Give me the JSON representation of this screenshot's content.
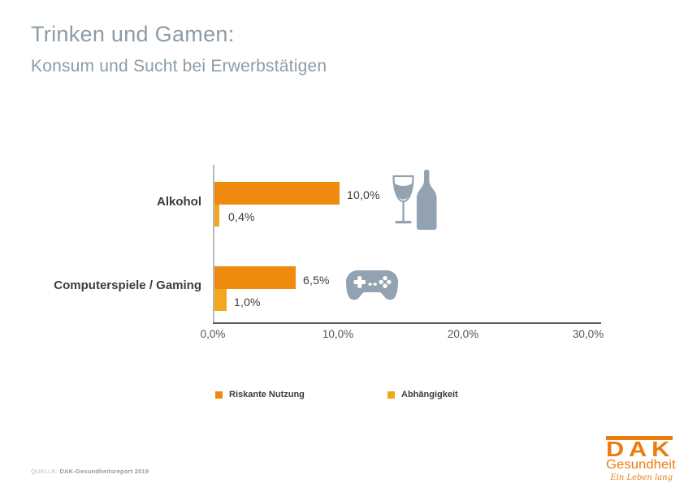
{
  "header": {
    "title": "Trinken und Gamen:",
    "subtitle": "Konsum und Sucht bei Erwerbstätigen"
  },
  "chart_data": {
    "type": "bar",
    "orientation": "horizontal",
    "title": "Trinken und Gamen: Konsum und Sucht bei Erwerbstätigen",
    "categories": [
      "Alkohol",
      "Computerspiele / Gaming"
    ],
    "series": [
      {
        "name": "Riskante Nutzung",
        "color": "#ee8a0d",
        "values": [
          10.0,
          6.5
        ]
      },
      {
        "name": "Abhängigkeit",
        "color": "#f3a71c",
        "values": [
          0.4,
          1.0
        ]
      }
    ],
    "value_labels": [
      [
        "10,0%",
        "6,5%"
      ],
      [
        "0,4%",
        "1,0%"
      ]
    ],
    "xlim": [
      0,
      30
    ],
    "x_ticks": [
      "0,0%",
      "10,0%",
      "20,0%",
      "30,0%"
    ],
    "grid": false,
    "legend_position": "bottom",
    "icon_color": "#92a2b0"
  },
  "footer": {
    "source_label": "QUELLE:",
    "source_text": "DAK-Gesundheitsreport 2019"
  },
  "logo": {
    "brand": "DAK",
    "subbrand": "Gesundheit",
    "tagline": "Ein Leben lang",
    "color": "#ec7c0c"
  }
}
